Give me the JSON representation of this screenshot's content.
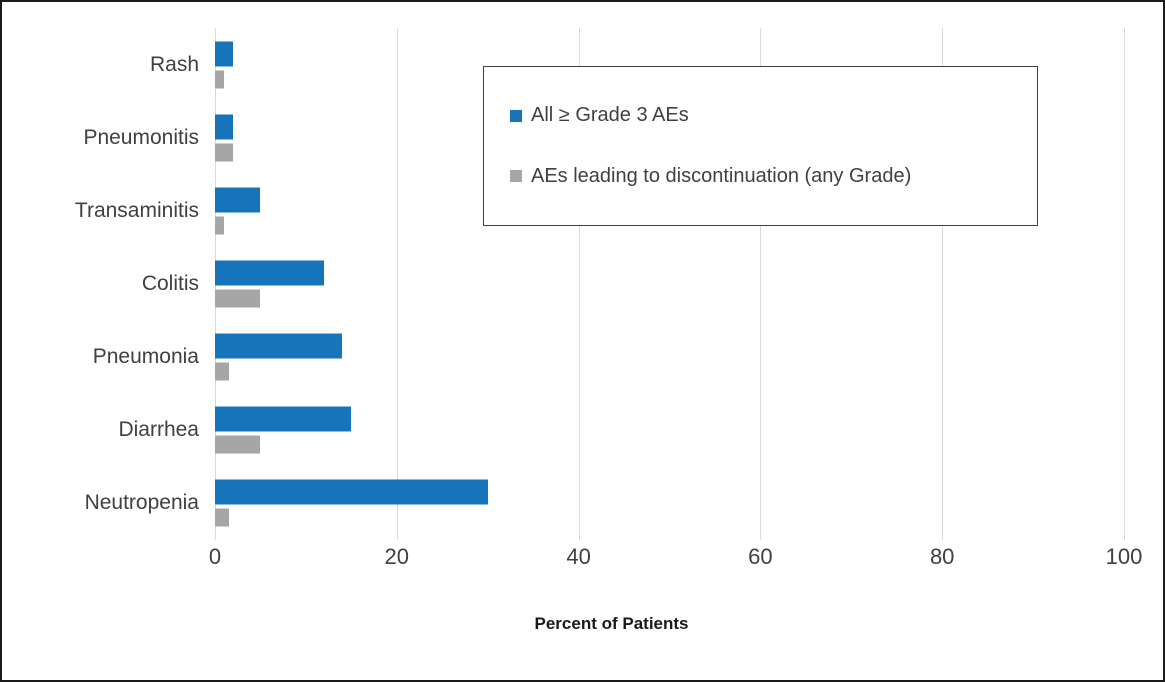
{
  "chart_data": {
    "type": "bar",
    "orientation": "horizontal",
    "title": "",
    "xlabel": "Percent of Patients",
    "ylabel": "",
    "xlim": [
      0,
      100
    ],
    "xticks": [
      0,
      20,
      40,
      60,
      80,
      100
    ],
    "grid": "vertical-only",
    "gridline_color": "#d9d9d9",
    "legend_position": "top-right-inside-box",
    "categories": [
      "Rash",
      "Pneumonitis",
      "Transaminitis",
      "Colitis",
      "Pneumonia",
      "Diarrhea",
      "Neutropenia"
    ],
    "series": [
      {
        "name": "All ≥ Grade 3 AEs",
        "color": "#1674bb",
        "values": [
          2,
          2,
          5,
          12,
          14,
          15,
          30
        ]
      },
      {
        "name": "AEs leading to discontinuation (any Grade)",
        "color": "#a6a6a6",
        "values": [
          1,
          2,
          1,
          5,
          1.5,
          5,
          1.5
        ]
      }
    ]
  }
}
